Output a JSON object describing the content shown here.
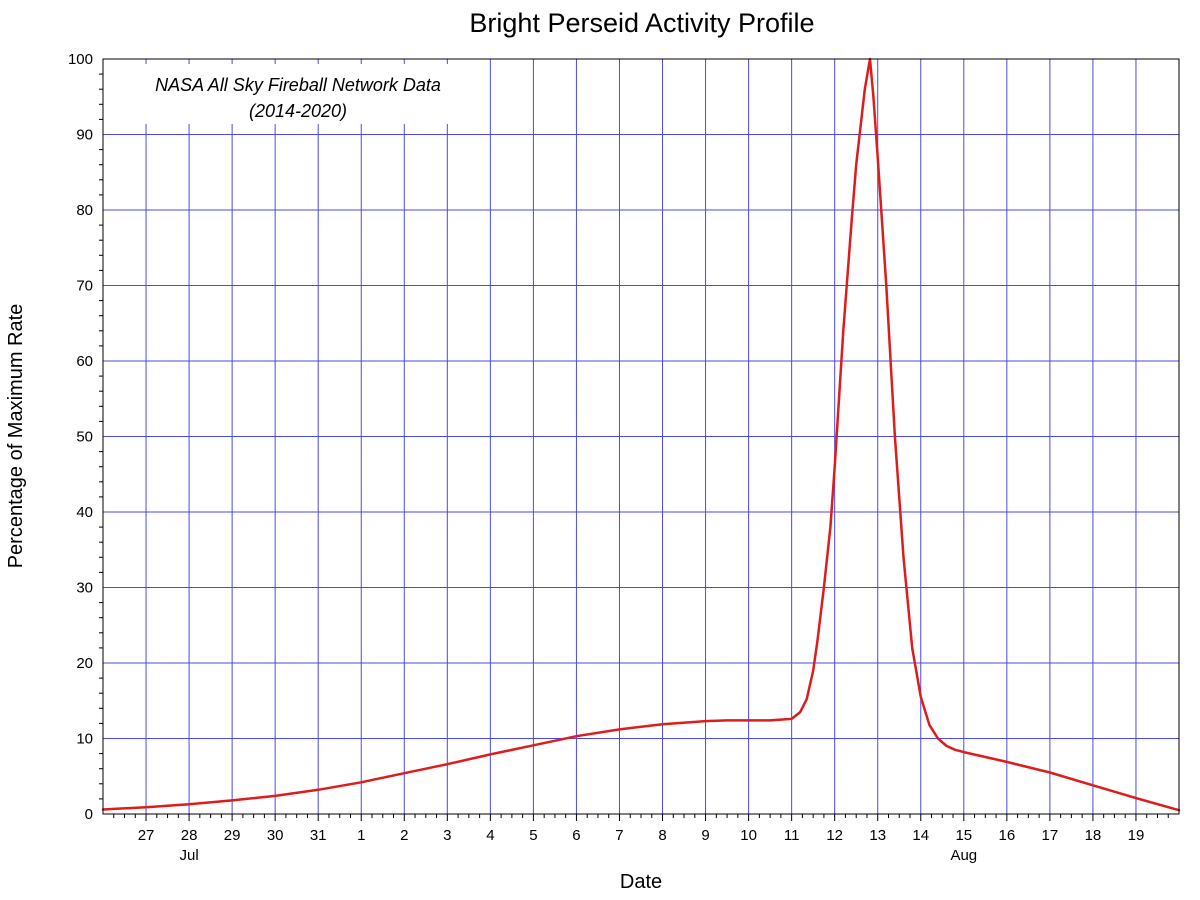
{
  "chart_data": {
    "type": "line",
    "title": "Bright Perseid Activity Profile",
    "xlabel": "Date",
    "ylabel": "Percentage of Maximum Rate",
    "annotation": {
      "line1": "NASA All Sky Fireball Network Data",
      "line2": "(2014-2020)"
    },
    "xlim": [
      "Jul 26",
      "Aug 20"
    ],
    "ylim": [
      0,
      100
    ],
    "y_ticks": [
      0,
      10,
      20,
      30,
      40,
      50,
      60,
      70,
      80,
      90,
      100
    ],
    "x_ticks": [
      {
        "date": "Jul 27",
        "label": "27"
      },
      {
        "date": "Jul 28",
        "label": "28"
      },
      {
        "date": "Jul 29",
        "label": "29"
      },
      {
        "date": "Jul 30",
        "label": "30"
      },
      {
        "date": "Jul 31",
        "label": "31"
      },
      {
        "date": "Aug 1",
        "label": "1"
      },
      {
        "date": "Aug 2",
        "label": "2"
      },
      {
        "date": "Aug 3",
        "label": "3"
      },
      {
        "date": "Aug 4",
        "label": "4"
      },
      {
        "date": "Aug 5",
        "label": "5"
      },
      {
        "date": "Aug 6",
        "label": "6"
      },
      {
        "date": "Aug 7",
        "label": "7"
      },
      {
        "date": "Aug 8",
        "label": "8"
      },
      {
        "date": "Aug 9",
        "label": "9"
      },
      {
        "date": "Aug 10",
        "label": "10"
      },
      {
        "date": "Aug 11",
        "label": "11"
      },
      {
        "date": "Aug 12",
        "label": "12"
      },
      {
        "date": "Aug 13",
        "label": "13"
      },
      {
        "date": "Aug 14",
        "label": "14"
      },
      {
        "date": "Aug 15",
        "label": "15"
      },
      {
        "date": "Aug 16",
        "label": "16"
      },
      {
        "date": "Aug 17",
        "label": "17"
      },
      {
        "date": "Aug 18",
        "label": "18"
      },
      {
        "date": "Aug 19",
        "label": "19"
      }
    ],
    "month_labels": [
      {
        "date": "Jul 28",
        "label": "Jul"
      },
      {
        "date": "Aug 15",
        "label": "Aug"
      }
    ],
    "grid": true,
    "colors": {
      "grid": "#4a4ae6",
      "line": "#dd1c1c"
    },
    "series": [
      {
        "x": [
          "Jul 26",
          "Jul 27",
          "Jul 28",
          "Jul 29",
          "Jul 30",
          "Jul 31",
          "Aug 1",
          "Aug 2",
          "Aug 3",
          "Aug 4",
          "Aug 5",
          "Aug 6",
          "Aug 7",
          "Aug 8",
          "Aug 9",
          "Aug 9.5",
          "Aug 10",
          "Aug 10.5",
          "Aug 11",
          "Aug 11.2",
          "Aug 11.35",
          "Aug 11.5",
          "Aug 11.6",
          "Aug 11.75",
          "Aug 11.9",
          "Aug 12",
          "Aug 12.2",
          "Aug 12.4",
          "Aug 12.5",
          "Aug 12.7",
          "Aug 12.82",
          "Aug 12.9",
          "Aug 13",
          "Aug 13.2",
          "Aug 13.4",
          "Aug 13.6",
          "Aug 13.8",
          "Aug 14",
          "Aug 14.2",
          "Aug 14.4",
          "Aug 14.6",
          "Aug 14.8",
          "Aug 15",
          "Aug 16",
          "Aug 17",
          "Aug 18",
          "Aug 19",
          "Aug 20"
        ],
        "values": [
          0.6,
          0.9,
          1.3,
          1.8,
          2.4,
          3.2,
          4.2,
          5.4,
          6.6,
          7.9,
          9.1,
          10.3,
          11.2,
          11.9,
          12.3,
          12.4,
          12.4,
          12.4,
          12.6,
          13.5,
          15.2,
          19.0,
          23.0,
          30.0,
          38.0,
          46.0,
          64.0,
          79.0,
          86.0,
          96.0,
          100.0,
          95.0,
          87.0,
          70.0,
          50.0,
          34.0,
          22.0,
          15.5,
          11.8,
          10.0,
          9.0,
          8.5,
          8.2,
          6.9,
          5.5,
          3.8,
          2.1,
          0.5
        ]
      }
    ]
  }
}
